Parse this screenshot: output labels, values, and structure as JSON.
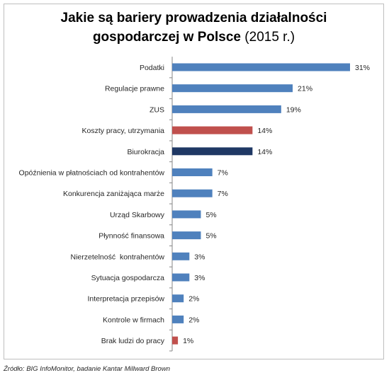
{
  "title": {
    "line1": "Jakie są bariery prowadzenia działalności",
    "line2_bold": "gospodarczej w Polsce",
    "line2_normal": " (2015 r.)"
  },
  "source": "Źródło: BIG InfoMonitor, badanie Kantar Millward Brown",
  "colors": {
    "default": "#4f81bd",
    "highlight_red": "#c0504d",
    "highlight_navy": "#1f3864"
  },
  "chart_data": {
    "type": "bar",
    "orientation": "horizontal",
    "title": "Jakie są bariery prowadzenia działalności gospodarczej w Polsce (2015 r.)",
    "xlim": [
      0,
      31
    ],
    "grid": false,
    "categories": [
      "Podatki",
      "Regulacje prawne",
      "ZUS",
      "Koszty pracy, utrzymania",
      "Biurokracja",
      "Opóźnienia w płatnościach od kontrahentów",
      "Konkurencja zaniżająca marże",
      "Urząd Skarbowy",
      "Płynność finansowa",
      "Nierzetelność  kontrahentów",
      "Sytuacja gospodarcza",
      "Interpretacja przepisów",
      "Kontrole w firmach",
      "Brak ludzi do pracy"
    ],
    "values": [
      31,
      21,
      19,
      14,
      14,
      7,
      7,
      5,
      5,
      3,
      3,
      2,
      2,
      1
    ],
    "value_labels": [
      "31%",
      "21%",
      "19%",
      "14%",
      "14%",
      "7%",
      "7%",
      "5%",
      "5%",
      "3%",
      "3%",
      "2%",
      "2%",
      "1%"
    ],
    "bar_colors": [
      "default",
      "default",
      "default",
      "highlight_red",
      "highlight_navy",
      "default",
      "default",
      "default",
      "default",
      "default",
      "default",
      "default",
      "default",
      "highlight_red"
    ]
  }
}
